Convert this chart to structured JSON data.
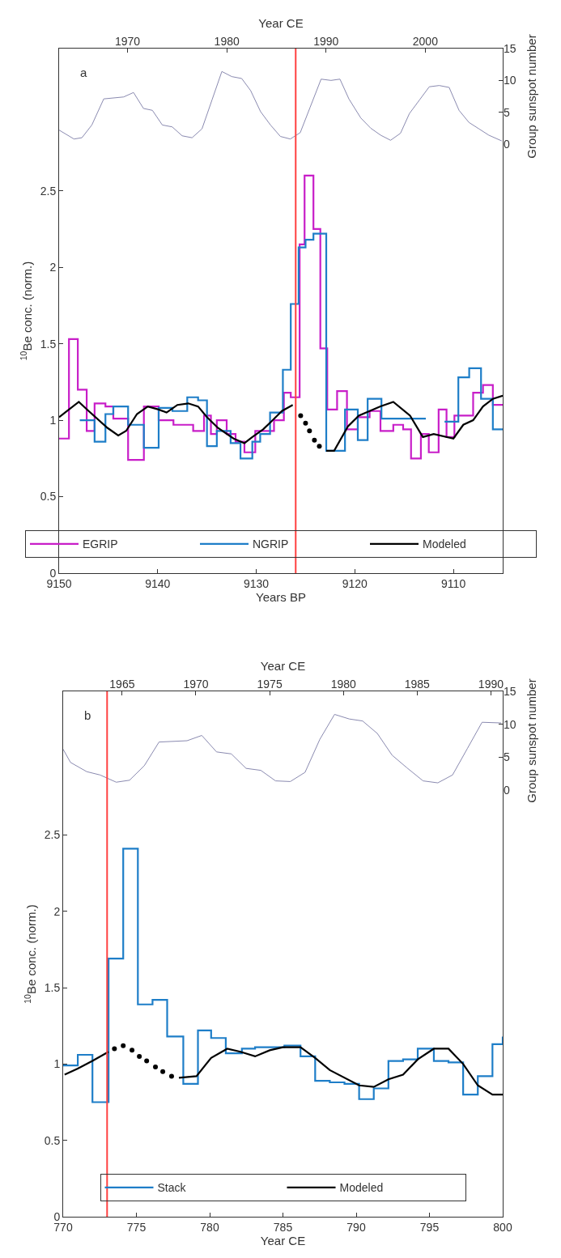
{
  "chart_data": [
    {
      "type": "step",
      "xlabel": "Years BP",
      "ylabel": "$^{10}$Be conc. (norm.)",
      "annotations": [
        "a"
      ],
      "xlim": [
        9150,
        9105
      ],
      "xticks": [
        9150,
        9140,
        9130,
        9120,
        9110
      ],
      "ylim": [
        0,
        3.43
      ],
      "yticks": [
        0,
        0.5,
        1,
        1.5,
        2,
        2.5
      ],
      "legend": "bottom",
      "ref_lines": [
        {
          "axis": "x",
          "value": 9126,
          "color": "#ff4040"
        }
      ],
      "series": [
        {
          "name": "EGRIP",
          "color": "#c81ec8",
          "x": [
            9150.0,
            9149.0,
            9148.1,
            9147.2,
            9146.4,
            9145.3,
            9144.5,
            9143.0,
            9141.4,
            9139.9,
            9138.4,
            9136.4,
            9135.3,
            9134.6,
            9134.0,
            9133.0,
            9132.1,
            9131.2,
            9130.1,
            9128.2,
            9127.2,
            9126.5,
            9125.6,
            9125.1,
            9124.2,
            9123.5,
            9122.8,
            9121.8,
            9120.8,
            9119.7,
            9118.5,
            9117.4,
            9116.1,
            9115.1,
            9114.3,
            9113.3,
            9112.5,
            9111.5,
            9110.7,
            9109.9,
            9108.0,
            9107.0,
            9106.0,
            9105.0
          ],
          "values": [
            0.88,
            1.53,
            1.2,
            0.93,
            1.11,
            1.09,
            1.01,
            0.74,
            1.09,
            1.0,
            0.97,
            0.93,
            1.03,
            0.91,
            1.0,
            0.91,
            0.86,
            0.79,
            0.93,
            1.0,
            1.18,
            1.15,
            2.15,
            2.6,
            2.25,
            1.47,
            1.07,
            1.19,
            0.94,
            1.02,
            1.06,
            0.93,
            0.97,
            0.94,
            0.75,
            0.91,
            0.79,
            1.07,
            0.89,
            1.03,
            1.18,
            1.23,
            1.1,
            1.1
          ]
        },
        {
          "name": "NGRIP",
          "color": "#1e7ec8",
          "x": [
            9147.9,
            9146.4,
            9145.3,
            9144.5,
            9143.0,
            9141.4,
            9139.9,
            9138.5,
            9137.0,
            9135.9,
            9135.0,
            9134.0,
            9132.6,
            9131.6,
            9130.4,
            9129.6,
            9128.6,
            9127.3,
            9126.5,
            9125.7,
            9125.0,
            9124.2,
            9122.9,
            9121.0,
            9119.7,
            9118.7,
            9117.3,
            9112.8,
            9112.0,
            9110.9,
            9109.5,
            9108.4,
            9107.2,
            9106.0,
            9105.0
          ],
          "values": [
            1.0,
            0.86,
            1.04,
            1.09,
            0.97,
            0.82,
            1.08,
            1.06,
            1.15,
            1.13,
            0.83,
            0.93,
            0.85,
            0.75,
            0.86,
            0.91,
            1.05,
            1.33,
            1.76,
            2.13,
            2.18,
            2.22,
            0.8,
            1.07,
            0.87,
            1.14,
            1.01,
            1.01,
            null,
            0.99,
            1.28,
            1.34,
            1.14,
            0.94,
            0.94
          ]
        },
        {
          "name": "Modeled",
          "type": "line",
          "color": "#000000",
          "x": [
            9150.0,
            9148.0,
            9147.0,
            9145.1,
            9144.0,
            9143.2,
            9142.1,
            9141.0,
            9139.9,
            9139.1,
            9138.0,
            9136.9,
            9135.9,
            9135.0,
            9133.9,
            9132.3,
            9131.2,
            9130.4,
            9129.3,
            9128.5,
            9127.4,
            9126.3,
            9124.6,
            9122.9,
            9122.1,
            9120.7,
            9119.6,
            9118.5,
            9117.4,
            9116.1,
            9114.4,
            9113.1,
            9112.0,
            9110.0,
            9109.0,
            9108.0,
            9107.0,
            9106.0,
            9105.0
          ],
          "values": [
            1.02,
            1.12,
            1.06,
            0.95,
            0.9,
            0.93,
            1.04,
            1.09,
            1.07,
            1.05,
            1.1,
            1.11,
            1.09,
            1.02,
            0.95,
            0.88,
            0.85,
            0.89,
            0.94,
            0.99,
            1.06,
            1.1,
            null,
            0.8,
            0.8,
            0.96,
            1.03,
            1.06,
            1.09,
            1.12,
            1.03,
            0.89,
            0.91,
            0.88,
            0.97,
            1.0,
            1.09,
            1.14,
            1.16
          ]
        },
        {
          "type": "scatter",
          "marker": "circle",
          "color": "#000000",
          "x": [
            9125.5,
            9125.0,
            9124.6,
            9124.1,
            9123.6
          ],
          "values": [
            1.03,
            0.98,
            0.93,
            0.87,
            0.83
          ]
        }
      ]
    },
    {
      "type": "line",
      "xlabel": "Year CE",
      "ylabel": "Group sunspot number",
      "xlim": [
        1963.1,
        2007.8
      ],
      "xticks": [
        1970,
        1980,
        1990,
        2000
      ],
      "ylim": [
        0,
        15
      ],
      "yticks": [
        0,
        5,
        10,
        15
      ],
      "series": [
        {
          "color": "#8a8ab0",
          "x": [
            1963.1,
            1964.6,
            1965.4,
            1966.4,
            1967.6,
            1969.6,
            1970.6,
            1971.6,
            1972.5,
            1973.5,
            1974.5,
            1975.5,
            1976.5,
            1977.5,
            1978.5,
            1979.5,
            1980.5,
            1981.5,
            1982.4,
            1983.4,
            1984.4,
            1985.4,
            1986.4,
            1987.4,
            1988.4,
            1989.5,
            1990.5,
            1991.4,
            1992.3,
            1993.5,
            1994.5,
            1995.5,
            1996.5,
            1997.5,
            1998.4,
            1999.4,
            2000.4,
            2001.4,
            2002.4,
            2003.4,
            2004.4,
            2005.4,
            2006.4,
            2007.7
          ],
          "values": [
            2.2,
            0.8,
            1.0,
            3.0,
            7.1,
            7.4,
            8.1,
            5.6,
            5.3,
            3.0,
            2.7,
            1.3,
            1.0,
            2.4,
            6.9,
            11.4,
            10.6,
            10.3,
            8.4,
            5.1,
            3.0,
            1.2,
            0.8,
            1.8,
            5.8,
            10.2,
            10.0,
            10.2,
            7.1,
            4.1,
            2.5,
            1.4,
            0.6,
            1.7,
            4.8,
            6.9,
            9.0,
            9.2,
            8.9,
            5.3,
            3.4,
            2.4,
            1.4,
            0.5
          ]
        }
      ]
    },
    {
      "type": "step",
      "xlabel": "Year CE",
      "ylabel": "$^{10}$Be conc. (norm.)",
      "annotations": [
        "b"
      ],
      "xlim": [
        770,
        800
      ],
      "xticks": [
        770,
        775,
        780,
        785,
        790,
        795,
        800
      ],
      "ylim": [
        0,
        3.44
      ],
      "yticks": [
        0,
        0.5,
        1,
        1.5,
        2,
        2.5
      ],
      "legend": "bottom",
      "ref_lines": [
        {
          "axis": "x",
          "value": 773,
          "color": "#ff4040"
        }
      ],
      "series": [
        {
          "name": "Stack",
          "color": "#1e7ec8",
          "x": [
            770.0,
            771.0,
            772.0,
            773.1,
            774.1,
            775.1,
            776.1,
            777.1,
            778.2,
            779.2,
            780.1,
            781.1,
            782.2,
            783.1,
            785.1,
            786.2,
            787.2,
            788.2,
            789.2,
            790.2,
            791.2,
            792.2,
            793.2,
            794.2,
            795.3,
            796.3,
            797.3,
            798.3,
            799.3,
            800.0
          ],
          "values": [
            0.99,
            1.06,
            0.75,
            1.69,
            2.41,
            1.39,
            1.42,
            1.18,
            0.87,
            1.22,
            1.17,
            1.07,
            1.1,
            1.11,
            1.12,
            1.05,
            0.89,
            0.88,
            0.87,
            0.77,
            0.84,
            1.02,
            1.03,
            1.1,
            1.02,
            1.01,
            0.8,
            0.92,
            1.13,
            1.18
          ]
        },
        {
          "name": "Modeled",
          "type": "line",
          "color": "#000000",
          "x": [
            770.1,
            771.0,
            772.0,
            773.1,
            775.5,
            777.9,
            779.1,
            780.1,
            781.2,
            782.1,
            783.1,
            784.1,
            785.0,
            786.2,
            787.2,
            788.2,
            790.2,
            791.2,
            792.2,
            793.2,
            794.2,
            795.3,
            796.3,
            797.3,
            798.3,
            799.3,
            800.0
          ],
          "values": [
            0.93,
            0.97,
            1.02,
            1.08,
            null,
            0.91,
            0.92,
            1.04,
            1.1,
            1.08,
            1.05,
            1.09,
            1.11,
            1.11,
            1.04,
            0.96,
            0.86,
            0.85,
            0.9,
            0.93,
            1.03,
            1.1,
            1.1,
            1.0,
            0.86,
            0.8,
            0.8
          ]
        },
        {
          "type": "scatter",
          "marker": "circle",
          "color": "#000000",
          "x": [
            773.5,
            774.1,
            774.7,
            775.2,
            775.7,
            776.3,
            776.8,
            777.4
          ],
          "values": [
            1.1,
            1.12,
            1.09,
            1.05,
            1.02,
            0.98,
            0.95,
            0.92
          ]
        }
      ]
    },
    {
      "type": "line",
      "xlabel": "Year CE",
      "ylabel": "Group sunspot number",
      "xlim": [
        1961.0,
        1990.8
      ],
      "xticks": [
        1965,
        1970,
        1975,
        1980,
        1985,
        1990
      ],
      "ylim": [
        0,
        15
      ],
      "yticks": [
        0,
        5,
        10,
        15
      ],
      "series": [
        {
          "color": "#8a8ab0",
          "x": [
            1961.0,
            1961.5,
            1962.6,
            1963.5,
            1964.6,
            1965.5,
            1966.5,
            1967.5,
            1969.4,
            1970.4,
            1971.4,
            1972.4,
            1973.4,
            1974.4,
            1975.4,
            1976.4,
            1977.4,
            1978.4,
            1979.4,
            1980.4,
            1981.3,
            1982.3,
            1983.3,
            1984.3,
            1985.4,
            1986.4,
            1987.4,
            1988.4,
            1989.4,
            1990.7
          ],
          "values": [
            6.2,
            4.2,
            2.8,
            2.3,
            1.2,
            1.5,
            3.7,
            7.3,
            7.5,
            8.3,
            5.8,
            5.5,
            3.3,
            3.0,
            1.4,
            1.3,
            2.7,
            7.7,
            11.5,
            10.8,
            10.5,
            8.6,
            5.3,
            3.4,
            1.4,
            1.1,
            2.3,
            6.3,
            10.3,
            10.2
          ]
        }
      ]
    }
  ]
}
